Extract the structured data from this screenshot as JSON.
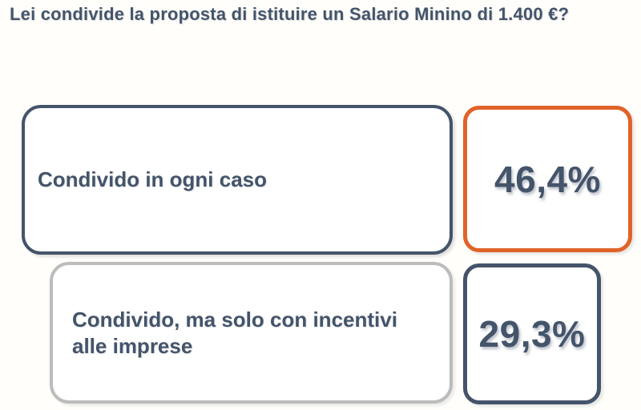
{
  "title": "Lei condivide la proposta di istituire un Salario Minino di 1.400 €?",
  "colors": {
    "text": "#44546A",
    "dark_border": "#44546A",
    "gray_border": "#BCBCBC",
    "highlight_orange": "#E06328",
    "background": "#FFFEFB",
    "box_fill": "#FFFFFF"
  },
  "answers": [
    {
      "label": "Condivido in ogni caso",
      "label_lines": [
        "Condivido in ogni caso"
      ],
      "value": "46,4%",
      "highlighted": true,
      "border_color": "#44546A",
      "value_border_color": "#E06328"
    },
    {
      "label": "Condivido, ma solo con incentivi alle imprese",
      "label_lines": [
        "Condivido, ma solo con incentivi",
        "alle imprese"
      ],
      "value": "29,3%",
      "highlighted": false,
      "border_color": "#BCBCBC",
      "value_border_color": "#44546A"
    }
  ],
  "chart_data": {
    "type": "bar",
    "title": "Lei condivide la proposta di istituire un Salario Minino di 1.400 €?",
    "categories": [
      "Condivido in ogni caso",
      "Condivido, ma solo con incentivi alle imprese"
    ],
    "values": [
      46.4,
      29.3
    ],
    "value_labels": [
      "46,4%",
      "29,3%"
    ],
    "unit": "%",
    "highlighted_category": "Condivido in ogni caso",
    "layout": "horizontal answer rows with value badges, partial list (cut at bottom)",
    "xlabel": "",
    "ylabel": ""
  }
}
